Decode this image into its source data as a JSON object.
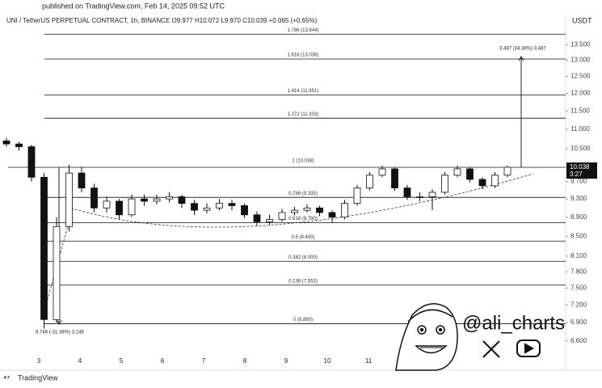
{
  "chart_data": {
    "type": "candlestick",
    "published": "published on TradingView.com, Feb 14, 2025 09:52 UTC",
    "title": "UNI / TetherUS PERPETUAL CONTRACT, 1h, BINANCE O9.977 H10.072 L9.970 C10.039 +0.065 (+0.65%)",
    "currency": "USDT",
    "log_scale": true,
    "ylim": [
      6.37,
      14.18
    ],
    "yticks": [
      {
        "value": 13.5,
        "label": "13.500"
      },
      {
        "value": 13,
        "label": "13.000"
      },
      {
        "value": 12.5,
        "label": "12.500"
      },
      {
        "value": 12,
        "label": "12.000"
      },
      {
        "value": 11.5,
        "label": "11.500"
      },
      {
        "value": 11,
        "label": "11.000"
      },
      {
        "value": 10.5,
        "label": "10.500"
      },
      {
        "value": 9.7,
        "label": "9.700"
      },
      {
        "value": 9.3,
        "label": "9.300"
      },
      {
        "value": 8.9,
        "label": "8.900"
      },
      {
        "value": 8.5,
        "label": "8.500"
      },
      {
        "value": 8.1,
        "label": "8.100"
      },
      {
        "value": 7.8,
        "label": "7.800"
      },
      {
        "value": 7.5,
        "label": "7.500"
      },
      {
        "value": 7.2,
        "label": "7.200"
      },
      {
        "value": 6.9,
        "label": "6.900"
      },
      {
        "value": 6.6,
        "label": "6.600"
      }
    ],
    "last_price": {
      "value": 10.038,
      "label": "10.038"
    },
    "countdown": "3:27",
    "x_labels": [
      "3",
      "4",
      "5",
      "6",
      "7",
      "8",
      "9",
      "10",
      "11"
    ],
    "levels": [
      {
        "label": "1.786 (13.844)",
        "value": 13.844
      },
      {
        "label": "1.618 (13.038)",
        "value": 13.038
      },
      {
        "label": "1.414 (11.951)",
        "value": 11.951
      },
      {
        "label": "1.272 (11.303)",
        "value": 11.303
      },
      {
        "label": "1 (10.038)",
        "value": 10.038
      },
      {
        "label": "0.786 (9.335)",
        "value": 9.335
      },
      {
        "label": "0.618 (8.780)",
        "value": 8.78
      },
      {
        "label": "0.5 (8.400)",
        "value": 8.4
      },
      {
        "label": "0.382 (8.000)",
        "value": 8.0
      },
      {
        "label": "0.236 (7.553)",
        "value": 7.553
      },
      {
        "label": "0 (6.880)",
        "value": 6.88
      }
    ],
    "ohlc": [
      [
        10.7,
        10.78,
        10.55,
        10.62
      ],
      [
        10.62,
        10.68,
        10.45,
        10.55
      ],
      [
        10.55,
        10.6,
        9.7,
        9.8
      ],
      [
        9.8,
        9.9,
        6.8,
        6.95
      ],
      [
        6.95,
        8.9,
        6.9,
        8.7
      ],
      [
        8.7,
        10.1,
        8.6,
        9.9
      ],
      [
        9.9,
        10.05,
        9.45,
        9.55
      ],
      [
        9.55,
        9.65,
        9.0,
        9.1
      ],
      [
        9.1,
        9.35,
        9.0,
        9.25
      ],
      [
        9.25,
        9.3,
        8.85,
        8.95
      ],
      [
        8.95,
        9.4,
        8.9,
        9.3
      ],
      [
        9.3,
        9.4,
        9.15,
        9.25
      ],
      [
        9.25,
        9.4,
        9.18,
        9.3
      ],
      [
        9.3,
        9.45,
        9.22,
        9.35
      ],
      [
        9.35,
        9.4,
        9.1,
        9.2
      ],
      [
        9.2,
        9.28,
        8.95,
        9.05
      ],
      [
        9.05,
        9.2,
        8.98,
        9.1
      ],
      [
        9.1,
        9.3,
        9.05,
        9.2
      ],
      [
        9.2,
        9.28,
        9.05,
        9.15
      ],
      [
        9.15,
        9.2,
        8.88,
        8.95
      ],
      [
        8.95,
        9.02,
        8.72,
        8.8
      ],
      [
        8.8,
        8.95,
        8.74,
        8.85
      ],
      [
        8.85,
        9.08,
        8.8,
        9.0
      ],
      [
        9.0,
        9.12,
        8.94,
        9.05
      ],
      [
        9.05,
        9.18,
        9.0,
        9.1
      ],
      [
        9.1,
        9.15,
        8.92,
        9.0
      ],
      [
        9.0,
        9.05,
        8.78,
        8.9
      ],
      [
        8.9,
        9.28,
        8.85,
        9.2
      ],
      [
        9.2,
        9.62,
        9.15,
        9.55
      ],
      [
        9.55,
        9.92,
        9.5,
        9.85
      ],
      [
        9.85,
        10.08,
        9.8,
        10.0
      ],
      [
        10.0,
        10.04,
        9.48,
        9.55
      ],
      [
        9.55,
        9.62,
        9.28,
        9.35
      ],
      [
        9.35,
        9.45,
        9.25,
        9.35
      ],
      [
        9.35,
        9.52,
        9.05,
        9.45
      ],
      [
        9.45,
        9.92,
        9.4,
        9.85
      ],
      [
        9.85,
        10.08,
        9.8,
        10.0
      ],
      [
        10.0,
        10.03,
        9.68,
        9.75
      ],
      [
        9.75,
        9.8,
        9.52,
        9.6
      ],
      [
        9.6,
        9.92,
        9.55,
        9.85
      ],
      [
        9.85,
        10.08,
        9.8,
        10.04
      ]
    ],
    "annotation_low": "6.748 (-31.38%) 3,146",
    "annotation_target": "3.487 (34.38%) 3,487",
    "handle": "@ali_charts",
    "brand": "TradingView"
  }
}
